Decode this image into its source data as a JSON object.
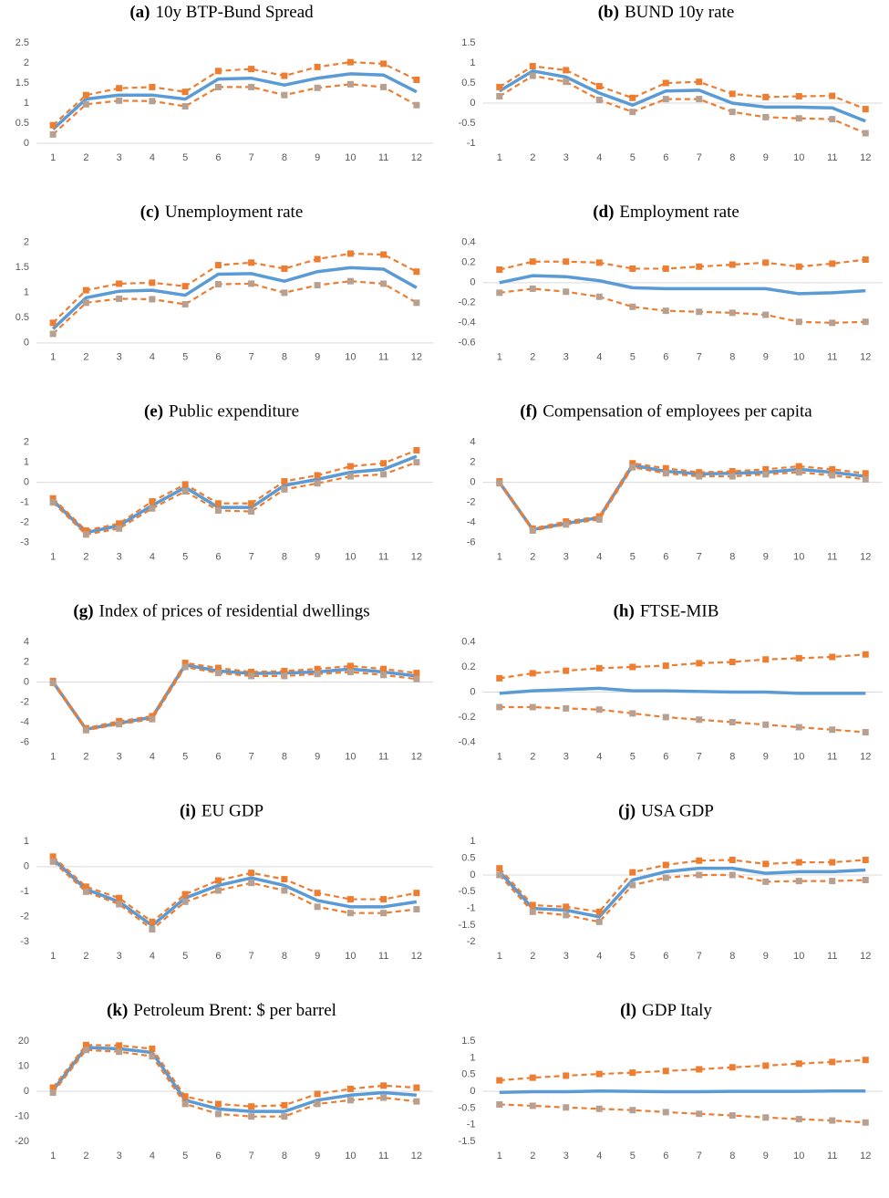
{
  "chart_data": [
    {
      "type": "line",
      "panel": "(a)",
      "title": "10y BTP-Bund Spread",
      "categories": [
        1,
        2,
        3,
        4,
        5,
        6,
        7,
        8,
        9,
        10,
        11,
        12
      ],
      "ylim": [
        0,
        2.5
      ],
      "yticks": [
        0,
        0.5,
        1,
        1.5,
        2,
        2.5
      ],
      "series": [
        {
          "color": "#5b9bd5",
          "style": "solid",
          "values": [
            0.35,
            1.1,
            1.2,
            1.2,
            1.1,
            1.6,
            1.62,
            1.45,
            1.62,
            1.73,
            1.7,
            1.28
          ]
        },
        {
          "color": "#ed7d31",
          "style": "dashed",
          "marker_color": "#ed7d31",
          "values": [
            0.45,
            1.2,
            1.37,
            1.4,
            1.28,
            1.8,
            1.85,
            1.68,
            1.9,
            2.02,
            1.98,
            1.58
          ]
        },
        {
          "color": "#ed7d31",
          "style": "dashed",
          "marker_color": "#b8a090",
          "values": [
            0.22,
            0.97,
            1.06,
            1.05,
            0.92,
            1.4,
            1.4,
            1.2,
            1.38,
            1.47,
            1.4,
            0.95
          ]
        }
      ]
    },
    {
      "type": "line",
      "panel": "(b)",
      "title": "BUND 10y rate",
      "categories": [
        1,
        2,
        3,
        4,
        5,
        6,
        7,
        8,
        9,
        10,
        11,
        12
      ],
      "ylim": [
        -1,
        1.5
      ],
      "yticks": [
        -1,
        -0.5,
        0,
        0.5,
        1,
        1.5
      ],
      "series": [
        {
          "color": "#5b9bd5",
          "style": "solid",
          "values": [
            0.3,
            0.8,
            0.65,
            0.25,
            -0.05,
            0.3,
            0.32,
            0.0,
            -0.1,
            -0.1,
            -0.12,
            -0.45
          ]
        },
        {
          "color": "#ed7d31",
          "style": "dashed",
          "marker_color": "#ed7d31",
          "values": [
            0.4,
            0.92,
            0.82,
            0.42,
            0.13,
            0.5,
            0.53,
            0.23,
            0.15,
            0.17,
            0.18,
            -0.15
          ]
        },
        {
          "color": "#ed7d31",
          "style": "dashed",
          "marker_color": "#b8a090",
          "values": [
            0.17,
            0.68,
            0.53,
            0.08,
            -0.22,
            0.1,
            0.1,
            -0.22,
            -0.35,
            -0.38,
            -0.4,
            -0.75
          ]
        }
      ]
    },
    {
      "type": "line",
      "panel": "(c)",
      "title": "Unemployment rate",
      "categories": [
        1,
        2,
        3,
        4,
        5,
        6,
        7,
        8,
        9,
        10,
        11,
        12
      ],
      "ylim": [
        0,
        2
      ],
      "yticks": [
        0,
        0.5,
        1,
        1.5,
        2
      ],
      "series": [
        {
          "color": "#5b9bd5",
          "style": "solid",
          "values": [
            0.28,
            0.9,
            1.03,
            1.05,
            0.95,
            1.37,
            1.38,
            1.23,
            1.42,
            1.5,
            1.47,
            1.1
          ]
        },
        {
          "color": "#ed7d31",
          "style": "dashed",
          "marker_color": "#ed7d31",
          "values": [
            0.4,
            1.05,
            1.18,
            1.2,
            1.13,
            1.55,
            1.6,
            1.48,
            1.67,
            1.78,
            1.76,
            1.42
          ]
        },
        {
          "color": "#ed7d31",
          "style": "dashed",
          "marker_color": "#b8a090",
          "values": [
            0.18,
            0.8,
            0.88,
            0.87,
            0.77,
            1.17,
            1.18,
            1.0,
            1.15,
            1.23,
            1.18,
            0.8
          ]
        }
      ]
    },
    {
      "type": "line",
      "panel": "(d)",
      "title": "Employment rate",
      "categories": [
        1,
        2,
        3,
        4,
        5,
        6,
        7,
        8,
        9,
        10,
        11,
        12
      ],
      "ylim": [
        -0.6,
        0.4
      ],
      "yticks": [
        -0.6,
        -0.4,
        -0.2,
        0,
        0.2,
        0.4
      ],
      "series": [
        {
          "color": "#5b9bd5",
          "style": "solid",
          "values": [
            0,
            0.07,
            0.06,
            0.02,
            -0.05,
            -0.06,
            -0.06,
            -0.06,
            -0.06,
            -0.11,
            -0.1,
            -0.08
          ]
        },
        {
          "color": "#ed7d31",
          "style": "dashed",
          "marker_color": "#ed7d31",
          "values": [
            0.13,
            0.21,
            0.21,
            0.2,
            0.14,
            0.14,
            0.16,
            0.18,
            0.2,
            0.16,
            0.19,
            0.23
          ]
        },
        {
          "color": "#ed7d31",
          "style": "dashed",
          "marker_color": "#b8a090",
          "values": [
            -0.1,
            -0.06,
            -0.09,
            -0.14,
            -0.24,
            -0.28,
            -0.29,
            -0.3,
            -0.32,
            -0.39,
            -0.4,
            -0.39
          ]
        }
      ]
    },
    {
      "type": "line",
      "panel": "(e)",
      "title": "Public expenditure",
      "categories": [
        1,
        2,
        3,
        4,
        5,
        6,
        7,
        8,
        9,
        10,
        11,
        12
      ],
      "ylim": [
        -3,
        2
      ],
      "yticks": [
        -3,
        -2,
        -1,
        0,
        1,
        2
      ],
      "series": [
        {
          "color": "#5b9bd5",
          "style": "solid",
          "values": [
            -0.9,
            -2.5,
            -2.15,
            -1.15,
            -0.25,
            -1.25,
            -1.25,
            -0.15,
            0.15,
            0.5,
            0.65,
            1.3
          ]
        },
        {
          "color": "#ed7d31",
          "style": "dashed",
          "marker_color": "#ed7d31",
          "values": [
            -0.8,
            -2.4,
            -2.05,
            -0.95,
            -0.1,
            -1.05,
            -1.05,
            0.05,
            0.35,
            0.8,
            0.95,
            1.6
          ]
        },
        {
          "color": "#ed7d31",
          "style": "dashed",
          "marker_color": "#b8a090",
          "values": [
            -1.0,
            -2.6,
            -2.3,
            -1.3,
            -0.45,
            -1.4,
            -1.45,
            -0.35,
            -0.05,
            0.3,
            0.4,
            1.0
          ]
        }
      ]
    },
    {
      "type": "line",
      "panel": "(f)",
      "title": "Compensation of employees per capita",
      "categories": [
        1,
        2,
        3,
        4,
        5,
        6,
        7,
        8,
        9,
        10,
        11,
        12
      ],
      "ylim": [
        -6,
        4
      ],
      "yticks": [
        -6,
        -4,
        -2,
        0,
        2,
        4
      ],
      "series": [
        {
          "color": "#5b9bd5",
          "style": "solid",
          "values": [
            0,
            -4.7,
            -4.1,
            -3.5,
            1.7,
            1.1,
            0.85,
            0.9,
            1.0,
            1.3,
            1.0,
            0.6
          ]
        },
        {
          "color": "#ed7d31",
          "style": "dashed",
          "marker_color": "#ed7d31",
          "values": [
            0.1,
            -4.6,
            -3.9,
            -3.4,
            1.9,
            1.4,
            1.0,
            1.1,
            1.3,
            1.6,
            1.3,
            0.9
          ]
        },
        {
          "color": "#ed7d31",
          "style": "dashed",
          "marker_color": "#b8a090",
          "values": [
            -0.1,
            -4.8,
            -4.2,
            -3.7,
            1.5,
            0.9,
            0.6,
            0.6,
            0.8,
            1.0,
            0.7,
            0.3
          ]
        }
      ]
    },
    {
      "type": "line",
      "panel": "(g)",
      "title": "Index of prices of residential dwellings",
      "categories": [
        1,
        2,
        3,
        4,
        5,
        6,
        7,
        8,
        9,
        10,
        11,
        12
      ],
      "ylim": [
        -6,
        4
      ],
      "yticks": [
        -6,
        -4,
        -2,
        0,
        2,
        4
      ],
      "series": [
        {
          "color": "#5b9bd5",
          "style": "solid",
          "values": [
            0,
            -4.7,
            -4.1,
            -3.5,
            1.7,
            1.1,
            0.85,
            0.9,
            1.0,
            1.3,
            1.0,
            0.6
          ]
        },
        {
          "color": "#ed7d31",
          "style": "dashed",
          "marker_color": "#ed7d31",
          "values": [
            0.1,
            -4.6,
            -3.9,
            -3.4,
            1.9,
            1.4,
            1.0,
            1.1,
            1.3,
            1.6,
            1.3,
            0.9
          ]
        },
        {
          "color": "#ed7d31",
          "style": "dashed",
          "marker_color": "#b8a090",
          "values": [
            -0.1,
            -4.8,
            -4.2,
            -3.7,
            1.5,
            0.9,
            0.6,
            0.6,
            0.8,
            1.0,
            0.7,
            0.3
          ]
        }
      ]
    },
    {
      "type": "line",
      "panel": "(h)",
      "title": "FTSE-MIB",
      "categories": [
        1,
        2,
        3,
        4,
        5,
        6,
        7,
        8,
        9,
        10,
        11,
        12
      ],
      "ylim": [
        -0.4,
        0.4
      ],
      "yticks": [
        -0.4,
        -0.2,
        0,
        0.2,
        0.4
      ],
      "series": [
        {
          "color": "#5b9bd5",
          "style": "solid",
          "values": [
            -0.01,
            0.01,
            0.02,
            0.03,
            0.01,
            0.01,
            0.005,
            0,
            0,
            -0.01,
            -0.01,
            -0.01
          ]
        },
        {
          "color": "#ed7d31",
          "style": "dashed",
          "marker_color": "#ed7d31",
          "values": [
            0.11,
            0.15,
            0.17,
            0.19,
            0.2,
            0.21,
            0.23,
            0.24,
            0.26,
            0.27,
            0.28,
            0.3
          ]
        },
        {
          "color": "#ed7d31",
          "style": "dashed",
          "marker_color": "#b8a090",
          "values": [
            -0.12,
            -0.12,
            -0.13,
            -0.14,
            -0.17,
            -0.2,
            -0.22,
            -0.24,
            -0.26,
            -0.28,
            -0.3,
            -0.32
          ]
        }
      ]
    },
    {
      "type": "line",
      "panel": "(i)",
      "title": "EU GDP",
      "categories": [
        1,
        2,
        3,
        4,
        5,
        6,
        7,
        8,
        9,
        10,
        11,
        12
      ],
      "ylim": [
        -3,
        1
      ],
      "yticks": [
        -3,
        -2,
        -1,
        0,
        1
      ],
      "series": [
        {
          "color": "#5b9bd5",
          "style": "solid",
          "values": [
            0.3,
            -0.9,
            -1.4,
            -2.35,
            -1.25,
            -0.75,
            -0.45,
            -0.75,
            -1.35,
            -1.6,
            -1.6,
            -1.4
          ]
        },
        {
          "color": "#ed7d31",
          "style": "dashed",
          "marker_color": "#ed7d31",
          "values": [
            0.4,
            -0.8,
            -1.25,
            -2.2,
            -1.1,
            -0.55,
            -0.25,
            -0.5,
            -1.05,
            -1.3,
            -1.3,
            -1.05
          ]
        },
        {
          "color": "#ed7d31",
          "style": "dashed",
          "marker_color": "#b8a090",
          "values": [
            0.2,
            -1.0,
            -1.5,
            -2.5,
            -1.4,
            -0.95,
            -0.65,
            -0.95,
            -1.6,
            -1.85,
            -1.85,
            -1.7
          ]
        }
      ]
    },
    {
      "type": "line",
      "panel": "(j)",
      "title": "USA GDP",
      "categories": [
        1,
        2,
        3,
        4,
        5,
        6,
        7,
        8,
        9,
        10,
        11,
        12
      ],
      "ylim": [
        -2,
        1
      ],
      "yticks": [
        -2,
        -1.5,
        -1,
        -0.5,
        0,
        0.5,
        1
      ],
      "series": [
        {
          "color": "#5b9bd5",
          "style": "solid",
          "values": [
            0.1,
            -1.0,
            -1.05,
            -1.25,
            -0.15,
            0.1,
            0.2,
            0.2,
            0.05,
            0.1,
            0.1,
            0.15
          ]
        },
        {
          "color": "#ed7d31",
          "style": "dashed",
          "marker_color": "#ed7d31",
          "values": [
            0.2,
            -0.9,
            -0.95,
            -1.1,
            0.08,
            0.3,
            0.43,
            0.45,
            0.33,
            0.38,
            0.38,
            0.45
          ]
        },
        {
          "color": "#ed7d31",
          "style": "dashed",
          "marker_color": "#b8a090",
          "values": [
            0,
            -1.1,
            -1.2,
            -1.4,
            -0.3,
            -0.08,
            0,
            0,
            -0.2,
            -0.18,
            -0.18,
            -0.15
          ]
        }
      ]
    },
    {
      "type": "line",
      "panel": "(k)",
      "title": "Petroleum Brent: $ per barrel",
      "categories": [
        1,
        2,
        3,
        4,
        5,
        6,
        7,
        8,
        9,
        10,
        11,
        12
      ],
      "ylim": [
        -20,
        20
      ],
      "yticks": [
        -20,
        -10,
        0,
        10,
        20
      ],
      "series": [
        {
          "color": "#5b9bd5",
          "style": "solid",
          "values": [
            0.5,
            17.5,
            17,
            15.5,
            -3.5,
            -7,
            -8,
            -8,
            -3.5,
            -1.5,
            -0.5,
            -1.5
          ]
        },
        {
          "color": "#ed7d31",
          "style": "dashed",
          "marker_color": "#ed7d31",
          "values": [
            1.5,
            18.5,
            18.3,
            17,
            -2,
            -5,
            -6,
            -5.5,
            -1,
            1,
            2.3,
            1.5
          ]
        },
        {
          "color": "#ed7d31",
          "style": "dashed",
          "marker_color": "#b8a090",
          "values": [
            -0.5,
            16.5,
            15.8,
            14,
            -5,
            -9,
            -10,
            -10,
            -5,
            -3.5,
            -2.5,
            -4
          ]
        }
      ]
    },
    {
      "type": "line",
      "panel": "(l)",
      "title": "GDP Italy",
      "categories": [
        1,
        2,
        3,
        4,
        5,
        6,
        7,
        8,
        9,
        10,
        11,
        12
      ],
      "ylim": [
        -1.5,
        1.5
      ],
      "yticks": [
        -1.5,
        -1,
        -0.5,
        0,
        0.5,
        1,
        1.5
      ],
      "series": [
        {
          "color": "#5b9bd5",
          "style": "solid",
          "values": [
            -0.03,
            -0.01,
            -0.01,
            0.01,
            0,
            -0.01,
            -0.01,
            0,
            0,
            0,
            0.01,
            0.01
          ]
        },
        {
          "color": "#ed7d31",
          "style": "dashed",
          "marker_color": "#ed7d31",
          "values": [
            0.33,
            0.41,
            0.47,
            0.52,
            0.56,
            0.61,
            0.66,
            0.72,
            0.77,
            0.83,
            0.88,
            0.94
          ]
        },
        {
          "color": "#ed7d31",
          "style": "dashed",
          "marker_color": "#b8a090",
          "values": [
            -0.39,
            -0.43,
            -0.48,
            -0.52,
            -0.56,
            -0.62,
            -0.67,
            -0.72,
            -0.78,
            -0.83,
            -0.87,
            -0.93
          ]
        }
      ]
    }
  ]
}
